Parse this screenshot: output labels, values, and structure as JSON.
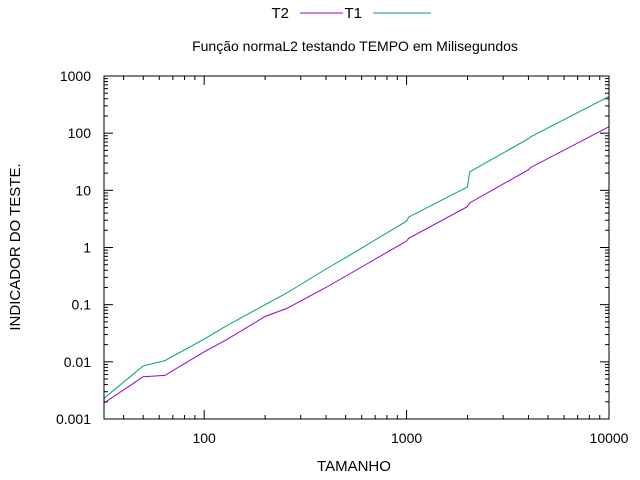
{
  "chart_data": {
    "type": "line",
    "title": "Função normaL2 testando TEMPO em Milisegundos",
    "xlabel": "TAMANHO",
    "ylabel": "INDICADOR DO TESTE.",
    "xscale": "log",
    "yscale": "log",
    "xlim": [
      32,
      10000
    ],
    "ylim": [
      0.001,
      1000
    ],
    "xticks": [
      100,
      1000,
      10000
    ],
    "xtick_labels": [
      "100",
      "1000",
      "10000"
    ],
    "yticks": [
      0.001,
      0.01,
      0.1,
      1,
      10,
      100,
      1000
    ],
    "ytick_labels": [
      "0.001",
      "0.01",
      "0.1",
      "1",
      "10",
      "100",
      "1000"
    ],
    "grid": false,
    "legend_position": "top",
    "series": [
      {
        "name": "T2",
        "color": "#9400d3",
        "x": [
          32,
          50,
          64,
          100,
          128,
          200,
          256,
          400,
          512,
          1000,
          1024,
          2000,
          2048,
          4000,
          4096,
          10000
        ],
        "y": [
          0.0019,
          0.0055,
          0.0058,
          0.015,
          0.024,
          0.062,
          0.086,
          0.2,
          0.33,
          1.3,
          1.45,
          5.2,
          6.0,
          23,
          25,
          130
        ]
      },
      {
        "name": "T1",
        "color": "#009e73",
        "x": [
          32,
          50,
          64,
          100,
          128,
          200,
          256,
          400,
          512,
          1000,
          1024,
          2000,
          2048,
          4000,
          4096,
          10000
        ],
        "y": [
          0.0023,
          0.0085,
          0.0105,
          0.025,
          0.042,
          0.1,
          0.16,
          0.42,
          0.7,
          2.9,
          3.4,
          11.5,
          21,
          80,
          86,
          440
        ]
      }
    ]
  }
}
